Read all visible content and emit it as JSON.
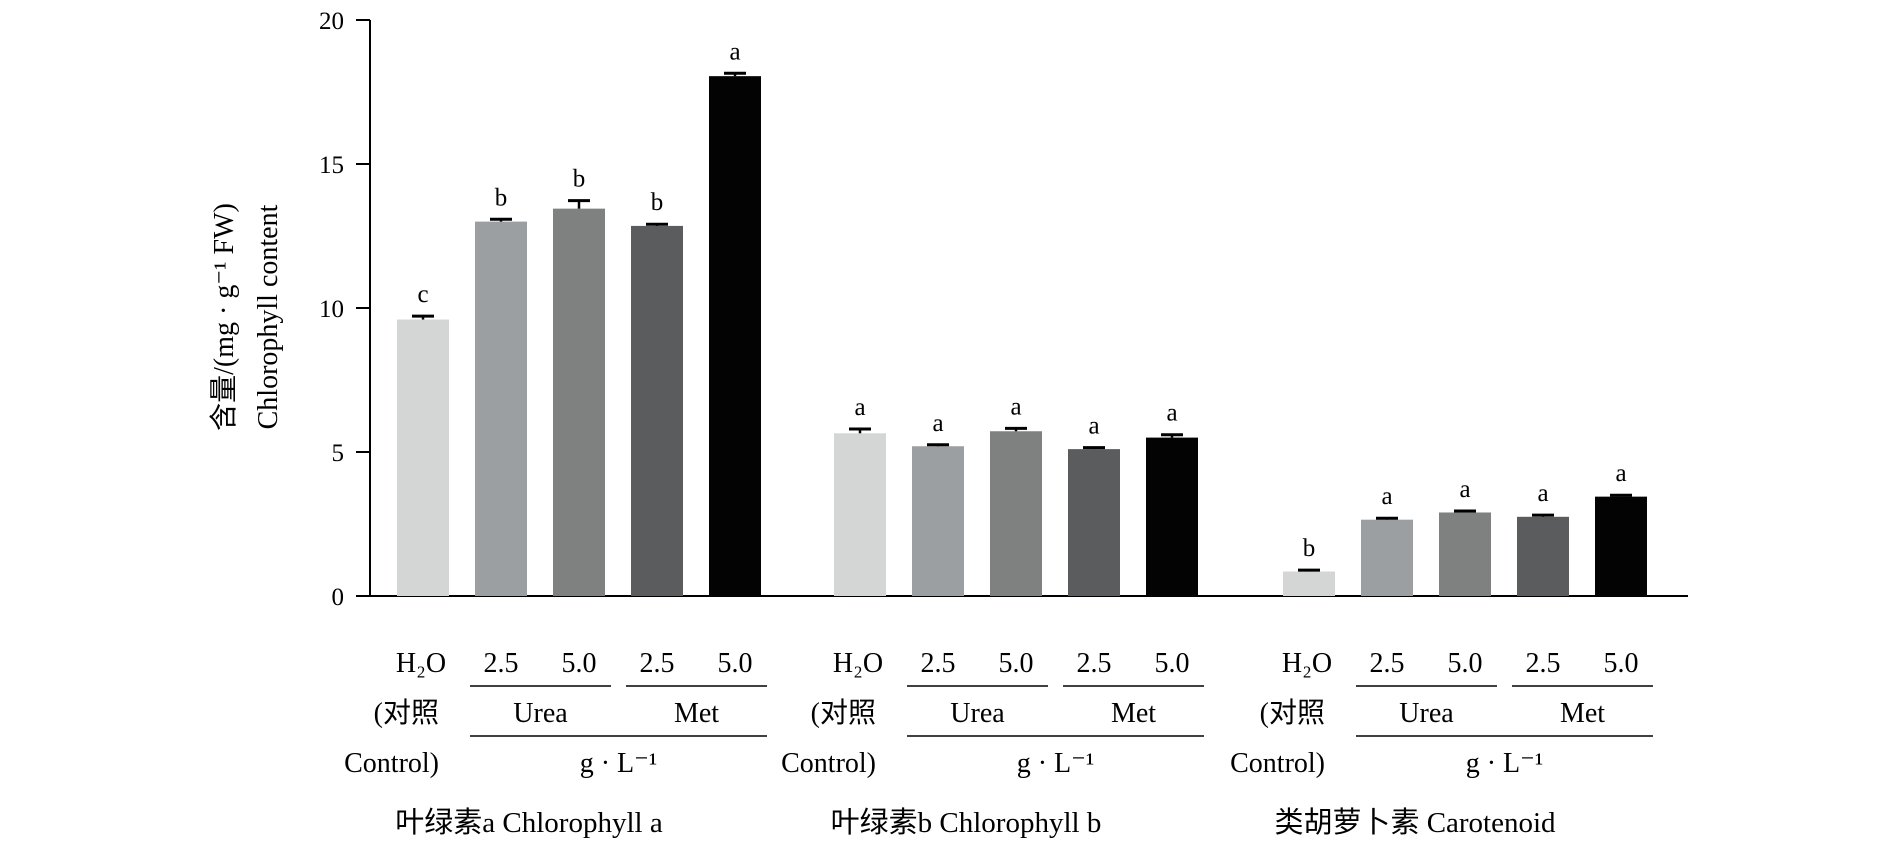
{
  "chart_data": {
    "type": "bar",
    "ylabel_lines": [
      "含量/(mg · g⁻¹ FW)",
      "Chlorophyll content"
    ],
    "ylim": [
      0,
      20
    ],
    "yticks": [
      "0",
      "5",
      "10",
      "15",
      "20"
    ],
    "grid": false,
    "legend": "none",
    "treatments": [
      {
        "name": "H2O (对照 Control)",
        "color": "#d4d6d5"
      },
      {
        "name": "Urea 2.5",
        "color": "#9c9fa2"
      },
      {
        "name": "Urea 5.0",
        "color": "#7f8180"
      },
      {
        "name": "Met 2.5",
        "color": "#5b5c5e"
      },
      {
        "name": "Met 5.0",
        "color": "#030303"
      }
    ],
    "groups": [
      {
        "title": "叶绿素a  Chlorophyll a",
        "values": [
          9.6,
          13.0,
          13.45,
          12.85,
          18.05
        ],
        "errors": [
          0.12,
          0.08,
          0.28,
          0.06,
          0.1
        ],
        "letters": [
          "c",
          "b",
          "b",
          "b",
          "a"
        ]
      },
      {
        "title": "叶绿素b  Chlorophyll b",
        "values": [
          5.65,
          5.2,
          5.72,
          5.1,
          5.5
        ],
        "errors": [
          0.15,
          0.05,
          0.1,
          0.05,
          0.1
        ],
        "letters": [
          "a",
          "a",
          "a",
          "a",
          "a"
        ]
      },
      {
        "title": "类胡萝卜素 Carotenoid",
        "values": [
          0.85,
          2.65,
          2.9,
          2.75,
          3.45
        ],
        "errors": [
          0.05,
          0.05,
          0.05,
          0.06,
          0.05
        ],
        "letters": [
          "b",
          "a",
          "a",
          "a",
          "a"
        ]
      }
    ],
    "category_labels": {
      "h2o": "H₂O",
      "dose_low": "2.5",
      "dose_high": "5.0",
      "control_line1": "(对照",
      "control_line2": "Control)",
      "urea": "Urea",
      "met": "Met",
      "unit": "g · L⁻¹"
    }
  }
}
